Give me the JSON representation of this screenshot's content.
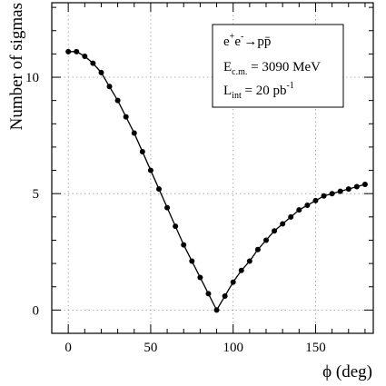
{
  "chart_data": {
    "type": "line",
    "xlabel": "ϕ (deg)",
    "ylabel": "Number of sigmas",
    "xlim": [
      -10,
      185
    ],
    "ylim": [
      -1,
      13.2
    ],
    "xticks": [
      0,
      50,
      100,
      150
    ],
    "yticks": [
      0,
      5,
      10
    ],
    "grid": true,
    "legend_placement": "top-right",
    "annotation": {
      "line1": {
        "base": "e",
        "sup1": "+",
        "mid": "e",
        "sup2": "-",
        "arrow": "→",
        "end": "pp̄"
      },
      "line2": {
        "base": "E",
        "sub": "c.m.",
        "rest": " = 3090 MeV"
      },
      "line3": {
        "base": "L",
        "sub": "int",
        "rest": " = 20 pb",
        "sup": "-1"
      }
    },
    "series": [
      {
        "x": [
          0,
          5,
          10,
          15,
          20,
          25,
          30,
          35,
          40,
          45,
          50,
          55,
          60,
          65,
          70,
          75,
          80,
          85,
          90,
          95,
          100,
          105,
          110,
          115,
          120,
          125,
          130,
          135,
          140,
          145,
          150,
          155,
          160,
          165,
          170,
          175,
          180
        ],
        "y": [
          11.1,
          11.1,
          10.9,
          10.6,
          10.2,
          9.6,
          9.0,
          8.3,
          7.6,
          6.8,
          6.0,
          5.2,
          4.4,
          3.6,
          2.8,
          2.1,
          1.4,
          0.7,
          0.0,
          0.6,
          1.2,
          1.7,
          2.1,
          2.6,
          3.0,
          3.4,
          3.7,
          4.0,
          4.3,
          4.5,
          4.7,
          4.9,
          5.0,
          5.1,
          5.2,
          5.3,
          5.4
        ]
      }
    ]
  }
}
